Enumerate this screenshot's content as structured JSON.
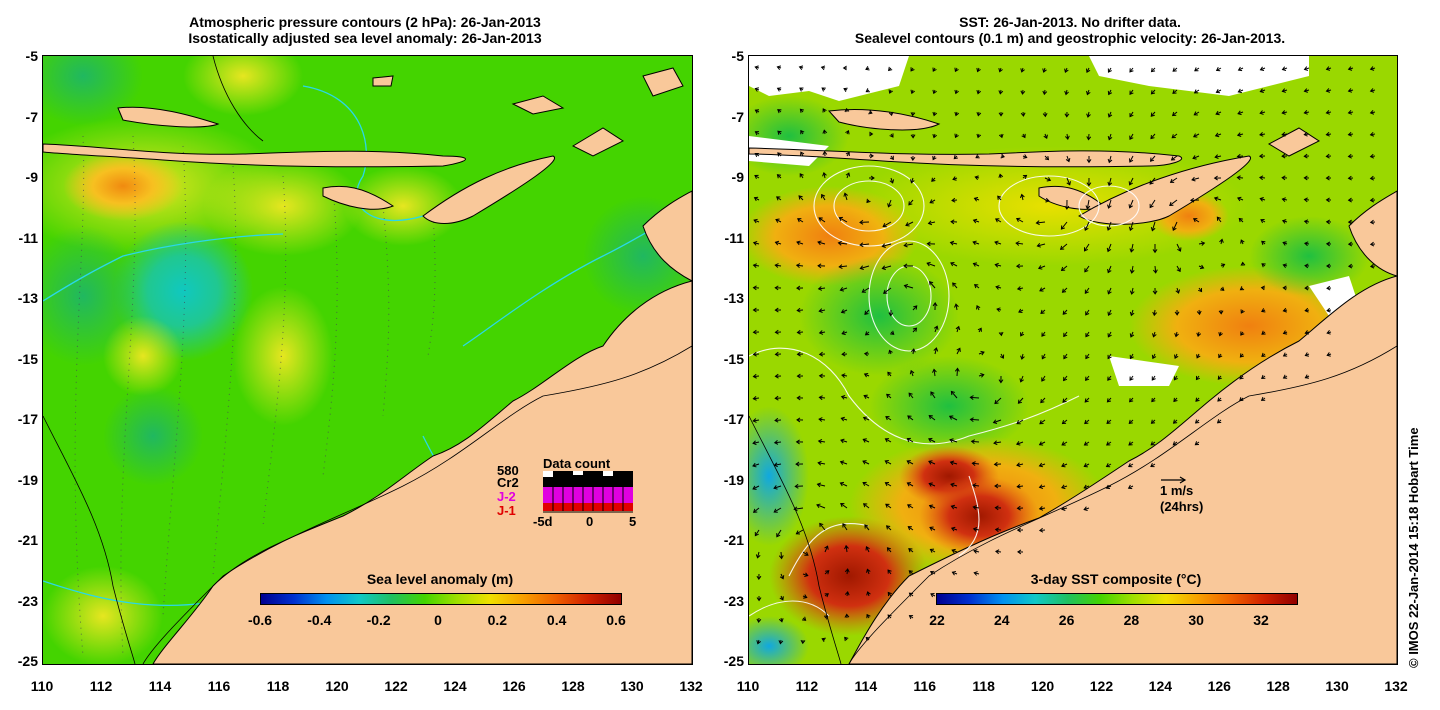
{
  "left": {
    "title_line1": "Atmospheric pressure contours (2 hPa): 26-Jan-2013",
    "title_line2": "Isostatically adjusted sea level anomaly: 26-Jan-2013",
    "colorbar_label": "Sea level anomaly (m)",
    "colorbar_ticks": [
      "-0.6",
      "-0.4",
      "-0.2",
      "0",
      "0.2",
      "0.4",
      "0.6"
    ],
    "legend": {
      "count": "580",
      "sat_cr2": "Cr2",
      "sat_j2": "J-2",
      "sat_j1": "J-1",
      "title": "Data count",
      "x_ticks": [
        "-5d",
        "0",
        "5"
      ]
    }
  },
  "right": {
    "title_line1": "SST: 26-Jan-2013. No drifter data.",
    "title_line2": "Sealevel contours (0.1 m) and geostrophic velocity: 26-Jan-2013.",
    "colorbar_label": "3-day SST composite (°C)",
    "colorbar_ticks": [
      "22",
      "24",
      "26",
      "28",
      "30",
      "32"
    ],
    "scale_label1": "1 m/s",
    "scale_label2": "(24hrs)"
  },
  "y_ticks": [
    "-5",
    "-7",
    "-9",
    "-11",
    "-13",
    "-15",
    "-17",
    "-19",
    "-21",
    "-23",
    "-25"
  ],
  "x_ticks": [
    "110",
    "112",
    "114",
    "116",
    "118",
    "120",
    "122",
    "124",
    "126",
    "128",
    "130",
    "132"
  ],
  "credit": "© IMOS 22-Jan-2014 15:18 Hobart Time",
  "colors": {
    "land": "#f9c89a",
    "ocean_green": "#44d400",
    "sla_high": "#f08a10",
    "sla_low": "#1cc8b4",
    "sst_hot": "#c02808"
  }
}
